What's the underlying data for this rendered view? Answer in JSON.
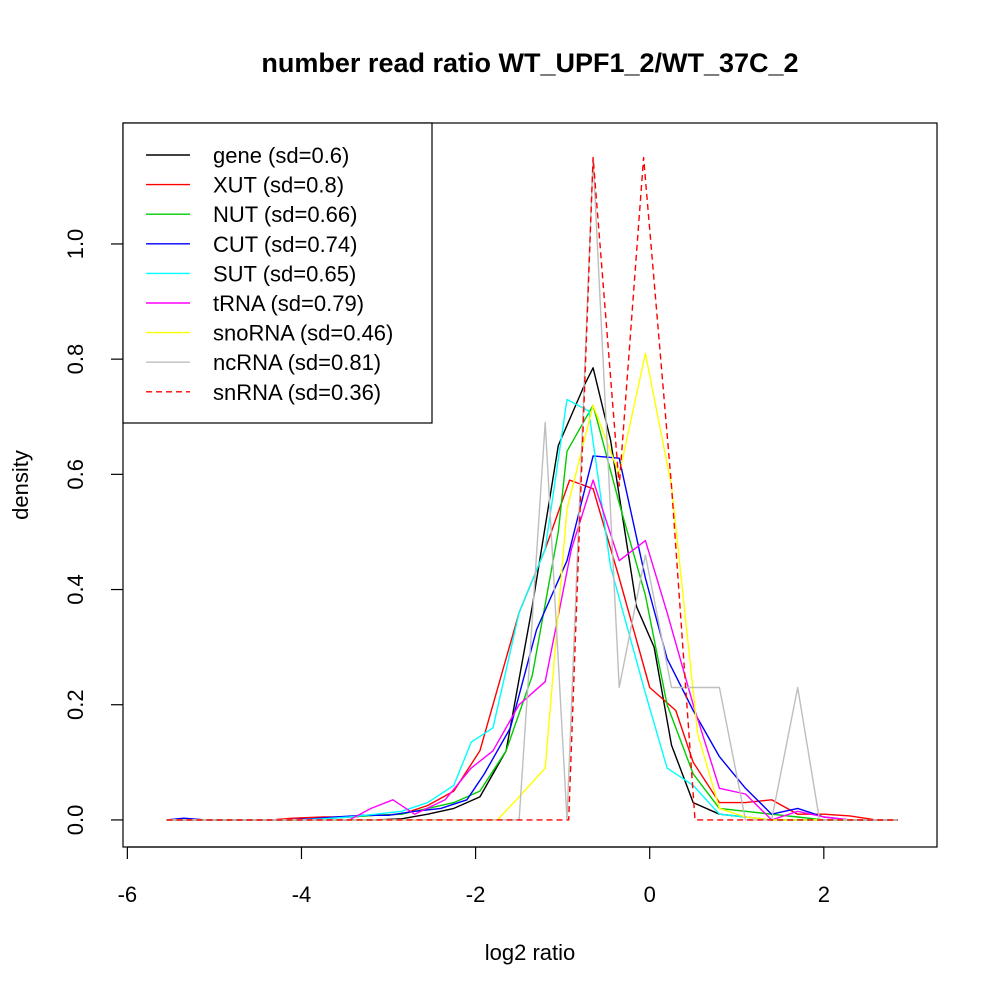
{
  "chart_data": {
    "type": "line",
    "title": "number read ratio WT_UPF1_2/WT_37C_2",
    "xlabel": "log2 ratio",
    "ylabel": "density",
    "xlim": [
      -6.05,
      3.3
    ],
    "ylim": [
      -0.047,
      1.21
    ],
    "xticks": [
      -6,
      -4,
      -2,
      0,
      2
    ],
    "xtick_labels": [
      "-6",
      "-4",
      "-2",
      "0",
      "2"
    ],
    "yticks": [
      0.0,
      0.2,
      0.4,
      0.6,
      0.8,
      1.0
    ],
    "ytick_labels": [
      "0.0",
      "0.2",
      "0.4",
      "0.6",
      "0.8",
      "1.0"
    ],
    "legend_position": "top-left",
    "series": [
      {
        "name": "gene (sd=0.6)",
        "color": "#000000",
        "dash": "solid",
        "x": [
          -5.55,
          -5.25,
          -4.95,
          -4.65,
          -4.35,
          -4.05,
          -3.75,
          -3.45,
          -3.15,
          -2.85,
          -2.55,
          -2.25,
          -1.95,
          -1.65,
          -1.35,
          -1.05,
          -0.75,
          -0.65,
          -0.45,
          -0.15,
          0.05,
          0.25,
          0.5,
          0.8,
          1.1,
          1.4,
          1.7,
          2.0,
          2.3,
          2.6,
          2.85
        ],
        "y": [
          0,
          0,
          0,
          0,
          0,
          0,
          0,
          0,
          0,
          0.002,
          0.01,
          0.02,
          0.04,
          0.12,
          0.37,
          0.65,
          0.755,
          0.785,
          0.66,
          0.37,
          0.3,
          0.13,
          0.03,
          0.01,
          0.005,
          0,
          0,
          0,
          0,
          0,
          0
        ]
      },
      {
        "name": "XUT (sd=0.8)",
        "color": "#ff0000",
        "dash": "solid",
        "x": [
          -5.55,
          -5.25,
          -4.95,
          -4.65,
          -4.35,
          -4.1,
          -3.75,
          -3.45,
          -3.15,
          -2.85,
          -2.55,
          -2.25,
          -1.95,
          -1.8,
          -1.5,
          -1.2,
          -0.92,
          -0.65,
          -0.35,
          0.0,
          0.3,
          0.5,
          0.8,
          1.1,
          1.4,
          1.7,
          2.0,
          2.3,
          2.6,
          2.85
        ],
        "y": [
          0,
          0,
          0,
          0,
          0,
          0.003,
          0.005,
          0.005,
          0.008,
          0.01,
          0.025,
          0.05,
          0.12,
          0.2,
          0.36,
          0.47,
          0.59,
          0.575,
          0.42,
          0.23,
          0.19,
          0.1,
          0.03,
          0.03,
          0.035,
          0.01,
          0.01,
          0.007,
          0,
          0
        ]
      },
      {
        "name": "NUT (sd=0.66)",
        "color": "#00cc00",
        "dash": "solid",
        "x": [
          -5.55,
          -5.25,
          -4.95,
          -4.65,
          -4.35,
          -4.05,
          -3.75,
          -3.45,
          -3.15,
          -2.85,
          -2.55,
          -2.25,
          -1.95,
          -1.65,
          -1.35,
          -1.05,
          -0.95,
          -0.65,
          -0.35,
          -0.05,
          0.2,
          0.5,
          0.8,
          1.1,
          1.4,
          1.7,
          2.0,
          2.3,
          2.6,
          2.85
        ],
        "y": [
          0,
          0,
          0,
          0,
          0,
          0,
          0.002,
          0.005,
          0.008,
          0.01,
          0.02,
          0.03,
          0.05,
          0.12,
          0.25,
          0.5,
          0.64,
          0.72,
          0.55,
          0.39,
          0.2,
          0.08,
          0.02,
          0.015,
          0.01,
          0.005,
          0,
          0,
          0,
          0
        ]
      },
      {
        "name": "CUT (sd=0.74)",
        "color": "#0000ff",
        "dash": "solid",
        "x": [
          -5.55,
          -5.35,
          -5.1,
          -4.8,
          -4.5,
          -4.2,
          -3.9,
          -3.6,
          -3.3,
          -3.0,
          -2.7,
          -2.4,
          -2.1,
          -1.9,
          -1.6,
          -1.3,
          -0.95,
          -0.65,
          -0.35,
          -0.05,
          0.2,
          0.5,
          0.8,
          1.1,
          1.4,
          1.7,
          2.0,
          2.3,
          2.6,
          2.85
        ],
        "y": [
          0,
          0.003,
          0,
          0,
          0,
          0,
          0.002,
          0.005,
          0.008,
          0.008,
          0.015,
          0.02,
          0.035,
          0.08,
          0.16,
          0.33,
          0.45,
          0.632,
          0.628,
          0.42,
          0.28,
          0.19,
          0.11,
          0.055,
          0.01,
          0.02,
          0.005,
          0,
          0,
          0
        ]
      },
      {
        "name": "SUT (sd=0.65)",
        "color": "#00ffff",
        "dash": "solid",
        "x": [
          -5.55,
          -5.25,
          -4.95,
          -4.65,
          -4.35,
          -4.05,
          -3.75,
          -3.45,
          -3.15,
          -2.85,
          -2.55,
          -2.25,
          -2.05,
          -1.8,
          -1.5,
          -1.2,
          -0.95,
          -0.7,
          -0.45,
          -0.05,
          0.2,
          0.5,
          0.8,
          1.1,
          1.4,
          1.7,
          2.0,
          2.3,
          2.6,
          2.85
        ],
        "y": [
          0,
          0,
          0,
          0,
          0,
          0,
          0.002,
          0.005,
          0.01,
          0.015,
          0.03,
          0.06,
          0.135,
          0.16,
          0.36,
          0.47,
          0.73,
          0.71,
          0.44,
          0.22,
          0.09,
          0.06,
          0.01,
          0.005,
          0,
          0,
          0,
          0,
          0,
          0
        ]
      },
      {
        "name": "tRNA (sd=0.79)",
        "color": "#ff00ff",
        "dash": "solid",
        "x": [
          -5.55,
          -5.25,
          -4.95,
          -4.65,
          -4.35,
          -4.05,
          -3.75,
          -3.45,
          -3.2,
          -2.95,
          -2.7,
          -2.35,
          -2.05,
          -1.8,
          -1.5,
          -1.2,
          -0.9,
          -0.65,
          -0.35,
          -0.05,
          0.2,
          0.5,
          0.8,
          1.1,
          1.4,
          1.7,
          2.0,
          2.3,
          2.6,
          2.85
        ],
        "y": [
          0,
          0,
          0,
          0,
          0,
          0,
          0,
          0,
          0.02,
          0.035,
          0.01,
          0.035,
          0.09,
          0.12,
          0.2,
          0.24,
          0.47,
          0.59,
          0.45,
          0.485,
          0.36,
          0.2,
          0.055,
          0.045,
          0,
          0.015,
          0.005,
          0,
          0,
          0
        ]
      },
      {
        "name": "snoRNA (sd=0.46)",
        "color": "#ffff00",
        "dash": "solid",
        "x": [
          -5.55,
          -1.75,
          -1.5,
          -1.2,
          -0.95,
          -0.65,
          -0.35,
          -0.05,
          0.25,
          0.55,
          0.8,
          1.1,
          1.4,
          1.7,
          2.0,
          2.85
        ],
        "y": [
          0,
          0,
          0.04,
          0.09,
          0.54,
          0.72,
          0.6,
          0.81,
          0.58,
          0.15,
          0.02,
          0.005,
          0,
          0,
          0,
          0
        ]
      },
      {
        "name": "ncRNA (sd=0.81)",
        "color": "#bebebe",
        "dash": "solid",
        "x": [
          -5.55,
          -1.5,
          -1.2,
          -0.95,
          -0.65,
          -0.35,
          -0.05,
          0.25,
          0.5,
          0.8,
          1.1,
          1.4,
          1.7,
          1.95,
          2.85
        ],
        "y": [
          0,
          0,
          0.69,
          0,
          1.15,
          0.23,
          0.46,
          0.23,
          0.23,
          0.23,
          0,
          0,
          0.23,
          0,
          0
        ]
      },
      {
        "name": "snRNA (sd=0.36)",
        "color": "#ff0000",
        "dash": "dashed",
        "x": [
          -5.55,
          -0.93,
          -0.65,
          -0.35,
          -0.07,
          0.25,
          0.52,
          2.85
        ],
        "y": [
          0,
          0,
          1.15,
          0.58,
          1.15,
          0.58,
          0,
          0
        ]
      }
    ]
  }
}
